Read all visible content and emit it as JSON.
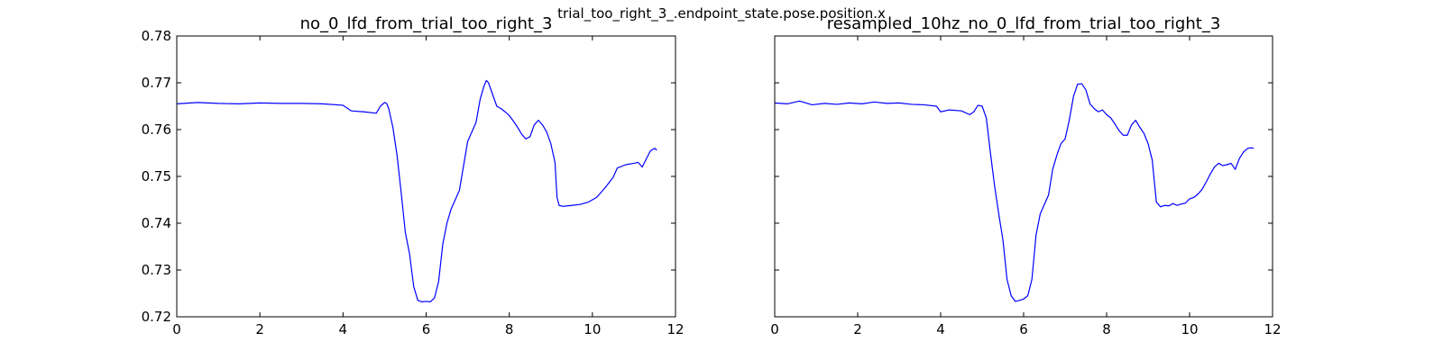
{
  "figure": {
    "suptitle": "trial_too_right_3_.endpoint_state.pose.position.x"
  },
  "colors": {
    "series": "#0000ff",
    "axes": "#000000",
    "background": "#ffffff"
  },
  "chart_data": [
    {
      "type": "line",
      "title": "no_0_lfd_from_trial_too_right_3",
      "xlabel": "",
      "ylabel": "",
      "xlim": [
        0,
        12
      ],
      "ylim": [
        0.72,
        0.78
      ],
      "xticks": [
        0,
        2,
        4,
        6,
        8,
        10,
        12
      ],
      "xtick_labels": [
        "0",
        "2",
        "4",
        "6",
        "8",
        "10",
        "12"
      ],
      "yticks": [
        0.72,
        0.73,
        0.74,
        0.75,
        0.76,
        0.77,
        0.78
      ],
      "ytick_labels": [
        "0.72",
        "0.73",
        "0.74",
        "0.75",
        "0.76",
        "0.77",
        "0.78"
      ],
      "grid": false,
      "series": [
        {
          "x": [
            0,
            0.5,
            1.0,
            1.5,
            2.0,
            2.5,
            3.0,
            3.5,
            4.0,
            4.2,
            4.5,
            4.8,
            4.9,
            5.0,
            5.05,
            5.1,
            5.2,
            5.3,
            5.4,
            5.5,
            5.6,
            5.7,
            5.8,
            5.9,
            6.0,
            6.1,
            6.2,
            6.3,
            6.4,
            6.5,
            6.6,
            6.8,
            7.0,
            7.2,
            7.3,
            7.4,
            7.45,
            7.5,
            7.6,
            7.7,
            7.8,
            7.9,
            8.0,
            8.1,
            8.2,
            8.3,
            8.4,
            8.5,
            8.6,
            8.7,
            8.8,
            8.9,
            9.0,
            9.1,
            9.15,
            9.2,
            9.3,
            9.5,
            9.7,
            9.9,
            10.1,
            10.3,
            10.5,
            10.6,
            10.8,
            11.0,
            11.1,
            11.2,
            11.3,
            11.4,
            11.5,
            11.55
          ],
          "y": [
            0.7655,
            0.7658,
            0.7656,
            0.7655,
            0.7657,
            0.7656,
            0.7656,
            0.7655,
            0.7652,
            0.764,
            0.7638,
            0.7635,
            0.765,
            0.7658,
            0.7656,
            0.7645,
            0.7605,
            0.7545,
            0.7465,
            0.738,
            0.7335,
            0.7265,
            0.7235,
            0.7232,
            0.7233,
            0.7232,
            0.724,
            0.7275,
            0.7355,
            0.74,
            0.743,
            0.747,
            0.7575,
            0.7615,
            0.7665,
            0.7695,
            0.7705,
            0.77,
            0.7675,
            0.765,
            0.7645,
            0.7638,
            0.763,
            0.7618,
            0.7605,
            0.759,
            0.758,
            0.7585,
            0.761,
            0.762,
            0.761,
            0.7595,
            0.757,
            0.753,
            0.7455,
            0.7438,
            0.7436,
            0.7438,
            0.744,
            0.7445,
            0.7455,
            0.7475,
            0.7498,
            0.7518,
            0.7525,
            0.7528,
            0.753,
            0.752,
            0.7538,
            0.7555,
            0.756,
            0.7556
          ]
        }
      ]
    },
    {
      "type": "line",
      "title": "resampled_10hz_no_0_lfd_from_trial_too_right_3",
      "xlabel": "",
      "ylabel": "",
      "xlim": [
        0,
        12
      ],
      "ylim": [
        0.72,
        0.78
      ],
      "xticks": [
        0,
        2,
        4,
        6,
        8,
        10,
        12
      ],
      "xtick_labels": [
        "0",
        "2",
        "4",
        "6",
        "8",
        "10",
        "12"
      ],
      "yticks": [
        0.72,
        0.73,
        0.74,
        0.75,
        0.76,
        0.77,
        0.78
      ],
      "ytick_labels": [],
      "grid": false,
      "series": [
        {
          "x": [
            0,
            0.3,
            0.6,
            0.9,
            1.2,
            1.5,
            1.8,
            2.1,
            2.4,
            2.7,
            3.0,
            3.3,
            3.6,
            3.9,
            4.0,
            4.2,
            4.5,
            4.7,
            4.8,
            4.9,
            5.0,
            5.1,
            5.2,
            5.3,
            5.4,
            5.5,
            5.6,
            5.7,
            5.8,
            5.9,
            6.0,
            6.1,
            6.2,
            6.3,
            6.4,
            6.5,
            6.6,
            6.7,
            6.8,
            6.9,
            7.0,
            7.1,
            7.2,
            7.3,
            7.4,
            7.5,
            7.6,
            7.7,
            7.8,
            7.9,
            8.0,
            8.1,
            8.2,
            8.3,
            8.4,
            8.5,
            8.6,
            8.7,
            8.8,
            8.9,
            9.0,
            9.1,
            9.2,
            9.3,
            9.4,
            9.5,
            9.6,
            9.7,
            9.8,
            9.9,
            10.0,
            10.1,
            10.2,
            10.3,
            10.4,
            10.5,
            10.6,
            10.7,
            10.8,
            10.9,
            11.0,
            11.1,
            11.2,
            11.3,
            11.4,
            11.5,
            11.55
          ],
          "y": [
            0.7657,
            0.7655,
            0.7661,
            0.7653,
            0.7656,
            0.7654,
            0.7657,
            0.7655,
            0.7659,
            0.7656,
            0.7657,
            0.7654,
            0.7653,
            0.765,
            0.7638,
            0.7642,
            0.764,
            0.7632,
            0.7638,
            0.7652,
            0.765,
            0.7625,
            0.755,
            0.748,
            0.742,
            0.7365,
            0.728,
            0.7245,
            0.7233,
            0.7235,
            0.7238,
            0.7245,
            0.728,
            0.7375,
            0.742,
            0.744,
            0.746,
            0.7515,
            0.7545,
            0.757,
            0.758,
            0.762,
            0.767,
            0.7697,
            0.7698,
            0.7685,
            0.7655,
            0.7645,
            0.7638,
            0.7642,
            0.7632,
            0.7625,
            0.7612,
            0.7598,
            0.7588,
            0.7588,
            0.761,
            0.762,
            0.7605,
            0.7592,
            0.757,
            0.7535,
            0.7445,
            0.7435,
            0.7438,
            0.7437,
            0.7442,
            0.7438,
            0.7441,
            0.7443,
            0.7452,
            0.7455,
            0.7462,
            0.7472,
            0.7488,
            0.7505,
            0.752,
            0.7528,
            0.7523,
            0.7525,
            0.7528,
            0.7515,
            0.7538,
            0.7552,
            0.756,
            0.7561,
            0.756
          ]
        }
      ]
    }
  ]
}
